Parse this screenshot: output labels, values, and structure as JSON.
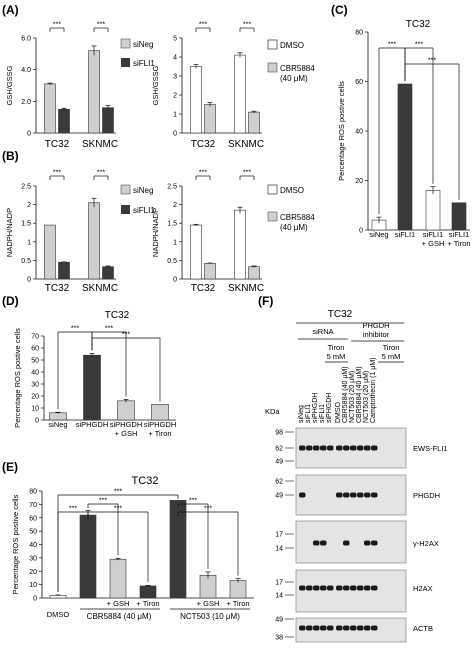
{
  "colors": {
    "light": "#cfcfcf",
    "dark": "#3a3a3a",
    "white": "#ffffff",
    "blot_band": "#1a1a1a",
    "blot_bg": "#e4e4e4"
  },
  "panel_labels": {
    "A": "(A)",
    "B": "(B)",
    "C": "(C)",
    "D": "(D)",
    "E": "(E)",
    "F": "(F)"
  },
  "sig": "***",
  "legend_si": {
    "neg": "siNeg",
    "fli1": "siFLI1"
  },
  "legend_drug": {
    "dmso": "DMSO",
    "cbr_l1": "CBR5884",
    "cbr_l2": "(40 μM)"
  },
  "titles": {
    "tc32": "TC32"
  },
  "axis_labels": {
    "gsh": "GSH/GSSG",
    "nadph": "NADPH/NADP",
    "ros": "Percentage ROS postive cells"
  },
  "cell_lines": {
    "tc32": "TC32",
    "sknmc": "SKNMC"
  },
  "c_cats": {
    "sineg": "siNeg",
    "sifli1": "siFLI1",
    "gsh_l1": "siFLI1",
    "gsh_l2": "+ GSH",
    "tir_l1": "siFLI1",
    "tir_l2": "+ Tiron"
  },
  "d_cats": {
    "sineg": "siNeg",
    "siphgdh": "siPHGDH",
    "gsh_l1": "siPHGDH",
    "gsh_l2": "+ GSH",
    "tir_l1": "siPHGDH",
    "tir_l2": "+ Tiron"
  },
  "e_cats": {
    "dmso": "DMSO",
    "gsh": "+ GSH",
    "tiron": "+ Tiron",
    "gsh2": "+ GSH",
    "tiron2": "+ Tiron",
    "cbr": "CBR5884 (40 μM)",
    "nct": "NCT503 (10 μM)"
  },
  "f": {
    "title": "TC32",
    "sirna": "siRNA",
    "inhib_l1": "PHGDH",
    "inhib_l2": "inhibitor",
    "tiron_l1": "Tiron",
    "tiron_l2": "5 mM",
    "tiron2_l1": "Tiron",
    "tiron2_l2": "5 mM",
    "kda": "KDa",
    "lanes": [
      "siNeg",
      "siFLI1",
      "siPHGDH",
      "siFLI1",
      "siPHGDH",
      "DMSO",
      "CBR5884 (40 μM)",
      "NCT503 (20 μM)",
      "CBR5884 (40 μM)",
      "NCT503 (20 μM)",
      "Camptothecin (1 μM)"
    ],
    "blots": [
      {
        "name": "EWS-FLI1",
        "markers": [
          "98",
          "62",
          "49"
        ]
      },
      {
        "name": "PHGDH",
        "markers": [
          "62",
          "49"
        ]
      },
      {
        "name": "γ-H2AX",
        "markers": [
          "17",
          "14"
        ]
      },
      {
        "name": "H2AX",
        "markers": [
          "17",
          "14"
        ]
      },
      {
        "name": "ACTB",
        "markers": [
          "49",
          "38"
        ]
      }
    ]
  },
  "chart_data": [
    {
      "panel": "A-left",
      "type": "bar",
      "categories": [
        "TC32",
        "SKNMC"
      ],
      "ylabel": "GSH/GSSG",
      "ylim": [
        0,
        6
      ],
      "yticks": [
        "0",
        "2.0",
        "4.0",
        "6.0"
      ],
      "series": [
        {
          "name": "siNeg",
          "values": [
            3.1,
            5.2
          ]
        },
        {
          "name": "siFLI1",
          "values": [
            1.5,
            1.6
          ]
        }
      ]
    },
    {
      "panel": "A-right",
      "type": "bar",
      "categories": [
        "TC32",
        "SKNMC"
      ],
      "ylabel": "GSH/GSSG",
      "ylim": [
        0,
        5
      ],
      "yticks": [
        "0",
        "1",
        "2",
        "3",
        "4",
        "5"
      ],
      "series": [
        {
          "name": "DMSO",
          "values": [
            3.5,
            4.1
          ]
        },
        {
          "name": "CBR5884 (40 μM)",
          "values": [
            1.5,
            1.1
          ]
        }
      ]
    },
    {
      "panel": "B-left",
      "type": "bar",
      "categories": [
        "TC32",
        "SKNMC"
      ],
      "ylabel": "NADPH/NADP",
      "ylim": [
        0,
        2.5
      ],
      "yticks": [
        "0",
        "0.5",
        "1",
        "1.5",
        "2",
        "2.5"
      ],
      "series": [
        {
          "name": "siNeg",
          "values": [
            1.45,
            2.05
          ]
        },
        {
          "name": "siFLI1",
          "values": [
            0.45,
            0.33
          ]
        }
      ]
    },
    {
      "panel": "B-right",
      "type": "bar",
      "categories": [
        "TC32",
        "SKNMC"
      ],
      "ylabel": "NADPH/NADP",
      "ylim": [
        0,
        2.5
      ],
      "yticks": [
        "0",
        "0.5",
        "1",
        "1.5",
        "2",
        "2.5"
      ],
      "series": [
        {
          "name": "DMSO",
          "values": [
            1.45,
            1.85
          ]
        },
        {
          "name": "CBR5884 (40 μM)",
          "values": [
            0.42,
            0.33
          ]
        }
      ]
    },
    {
      "panel": "C",
      "type": "bar",
      "title": "TC32",
      "ylabel": "Percentage ROS postive cells",
      "ylim": [
        0,
        80
      ],
      "yticks": [
        "0",
        "20",
        "40",
        "60",
        "80"
      ],
      "categories": [
        "siNeg",
        "siFLI1",
        "siFLI1 + GSH",
        "siFLI1 + Tiron"
      ],
      "values": [
        4,
        59,
        16,
        11
      ]
    },
    {
      "panel": "D",
      "type": "bar",
      "title": "TC32",
      "ylabel": "Percentage ROS postive cells",
      "ylim": [
        0,
        70
      ],
      "yticks": [
        "0",
        "10",
        "20",
        "30",
        "40",
        "50",
        "60",
        "70"
      ],
      "categories": [
        "siNeg",
        "siPHGDH",
        "siPHGDH + GSH",
        "siPHGDH + Tiron"
      ],
      "values": [
        6,
        54,
        16,
        13
      ]
    },
    {
      "panel": "E",
      "type": "bar",
      "title": "TC32",
      "ylabel": "Percentage ROS postive cells",
      "ylim": [
        0,
        80
      ],
      "yticks": [
        "0",
        "10",
        "20",
        "30",
        "40",
        "50",
        "60",
        "70",
        "80"
      ],
      "categories": [
        "DMSO",
        "CBR5884",
        "CBR5884 + GSH",
        "CBR5884 + Tiron",
        "NCT503",
        "NCT503 + GSH",
        "NCT503 + Tiron"
      ],
      "values": [
        2,
        62,
        29,
        9,
        73,
        17,
        13
      ]
    }
  ]
}
